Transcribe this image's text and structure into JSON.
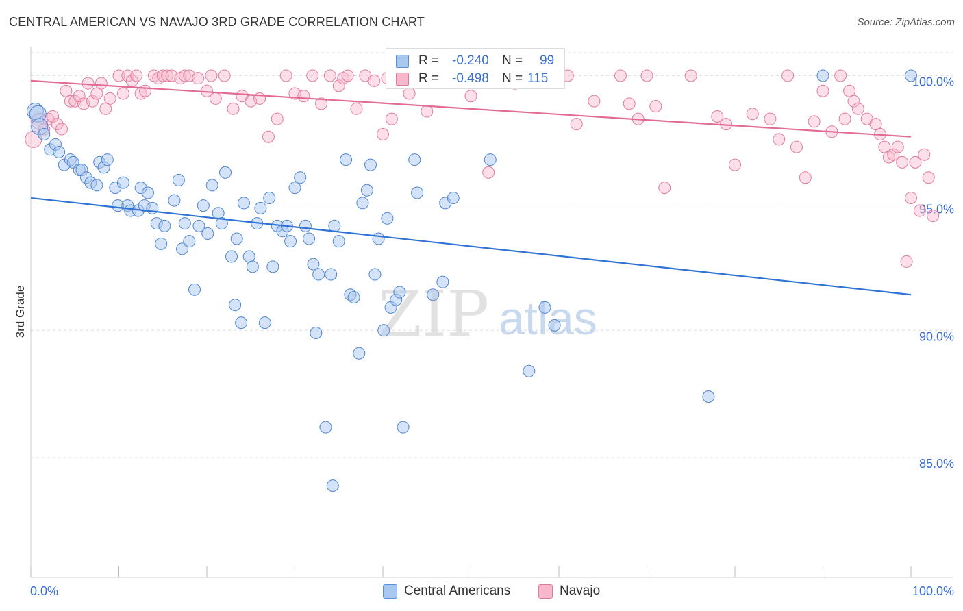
{
  "title": "CENTRAL AMERICAN VS NAVAJO 3RD GRADE CORRELATION CHART",
  "source": "Source: ZipAtlas.com",
  "watermark": {
    "zip": "ZIP",
    "atlas": "atlas"
  },
  "legend": {
    "rows": [
      {
        "r_label": "R =",
        "r_value": "-0.240",
        "n_label": "N =",
        "n_value": "99",
        "color": "#a9c8f0",
        "border": "#5b8fd6"
      },
      {
        "r_label": "R =",
        "r_value": "-0.498",
        "n_label": "N =",
        "n_value": "115",
        "color": "#f8b8cb",
        "border": "#e27a9c"
      }
    ]
  },
  "bottom_legend": [
    {
      "label": "Central Americans",
      "color": "#a9c8f0",
      "border": "#5b8fd6"
    },
    {
      "label": "Navajo",
      "color": "#f8b8cb",
      "border": "#e27a9c"
    }
  ],
  "chart_data": {
    "type": "scatter",
    "title": "CENTRAL AMERICAN VS NAVAJO 3RD GRADE CORRELATION CHART",
    "xlabel": "",
    "ylabel": "3rd Grade",
    "xlim": [
      0,
      100
    ],
    "ylim": [
      80.3,
      100.9
    ],
    "x_tick_labels": [
      "0.0%",
      "100.0%"
    ],
    "y_ticks": [
      85,
      90,
      95,
      100
    ],
    "y_tick_labels": [
      "85.0%",
      "90.0%",
      "95.0%",
      "100.0%"
    ],
    "grid": true,
    "legend_position": "top-center",
    "colors": {
      "central": "#2f73d6",
      "navajo": "#e26a93",
      "axis_text": "#3a6fd0"
    },
    "series": [
      {
        "name": "Central Americans",
        "r": -0.24,
        "n": 99,
        "trend": [
          [
            0,
            95.2
          ],
          [
            100,
            91.4
          ]
        ],
        "points": [
          [
            0.5,
            98.6
          ],
          [
            0.8,
            98.5
          ],
          [
            1.0,
            98.0
          ],
          [
            1.5,
            97.7
          ],
          [
            2.2,
            97.1
          ],
          [
            2.8,
            97.3
          ],
          [
            3.2,
            97.0
          ],
          [
            3.8,
            96.5
          ],
          [
            4.5,
            96.7
          ],
          [
            4.8,
            96.6
          ],
          [
            5.5,
            96.3
          ],
          [
            5.8,
            96.3
          ],
          [
            6.3,
            96.0
          ],
          [
            6.8,
            95.8
          ],
          [
            7.5,
            95.7
          ],
          [
            7.8,
            96.6
          ],
          [
            8.3,
            96.4
          ],
          [
            8.7,
            96.7
          ],
          [
            9.6,
            95.6
          ],
          [
            9.9,
            94.9
          ],
          [
            10.5,
            95.8
          ],
          [
            11.0,
            94.9
          ],
          [
            11.3,
            94.7
          ],
          [
            12.2,
            94.7
          ],
          [
            12.5,
            95.6
          ],
          [
            12.9,
            94.9
          ],
          [
            13.3,
            95.4
          ],
          [
            13.8,
            94.8
          ],
          [
            14.3,
            94.2
          ],
          [
            14.8,
            93.4
          ],
          [
            15.2,
            94.1
          ],
          [
            16.3,
            95.1
          ],
          [
            16.8,
            95.9
          ],
          [
            17.2,
            93.2
          ],
          [
            17.5,
            94.2
          ],
          [
            18.0,
            93.5
          ],
          [
            18.6,
            91.6
          ],
          [
            19.1,
            94.1
          ],
          [
            19.6,
            94.9
          ],
          [
            20.1,
            93.8
          ],
          [
            20.6,
            95.7
          ],
          [
            21.3,
            94.6
          ],
          [
            21.7,
            94.2
          ],
          [
            22.1,
            96.2
          ],
          [
            22.8,
            92.9
          ],
          [
            23.2,
            91.0
          ],
          [
            23.4,
            93.6
          ],
          [
            23.9,
            90.3
          ],
          [
            24.2,
            95.0
          ],
          [
            24.8,
            92.9
          ],
          [
            25.2,
            92.5
          ],
          [
            25.7,
            94.2
          ],
          [
            26.1,
            94.8
          ],
          [
            26.6,
            90.3
          ],
          [
            27.1,
            95.2
          ],
          [
            27.5,
            92.5
          ],
          [
            28.0,
            94.1
          ],
          [
            28.6,
            93.9
          ],
          [
            29.1,
            94.1
          ],
          [
            29.5,
            93.5
          ],
          [
            30.0,
            95.6
          ],
          [
            30.6,
            96.0
          ],
          [
            31.2,
            94.1
          ],
          [
            31.6,
            93.6
          ],
          [
            32.1,
            92.6
          ],
          [
            32.7,
            92.2
          ],
          [
            32.4,
            89.9
          ],
          [
            33.5,
            86.2
          ],
          [
            34.1,
            92.2
          ],
          [
            34.5,
            94.1
          ],
          [
            35.0,
            93.5
          ],
          [
            35.8,
            96.7
          ],
          [
            36.3,
            91.4
          ],
          [
            36.7,
            91.3
          ],
          [
            37.3,
            89.1
          ],
          [
            37.7,
            95.0
          ],
          [
            38.2,
            95.5
          ],
          [
            38.6,
            96.5
          ],
          [
            39.1,
            92.2
          ],
          [
            39.5,
            93.6
          ],
          [
            40.1,
            90.0
          ],
          [
            40.5,
            94.4
          ],
          [
            40.9,
            90.9
          ],
          [
            41.5,
            91.2
          ],
          [
            41.9,
            91.5
          ],
          [
            42.3,
            86.2
          ],
          [
            42.6,
            100.0
          ],
          [
            43.6,
            96.7
          ],
          [
            43.9,
            95.4
          ],
          [
            45.7,
            91.4
          ],
          [
            46.8,
            91.9
          ],
          [
            47.1,
            95.0
          ],
          [
            48.0,
            95.2
          ],
          [
            52.2,
            96.7
          ],
          [
            56.6,
            88.4
          ],
          [
            57.6,
            100.0
          ],
          [
            58.4,
            90.9
          ],
          [
            59.5,
            90.2
          ],
          [
            77.0,
            87.4
          ],
          [
            90.0,
            100.0
          ],
          [
            100.0,
            100.0
          ],
          [
            34.3,
            83.9
          ]
        ]
      },
      {
        "name": "Navajo",
        "r": -0.498,
        "n": 115,
        "trend": [
          [
            0,
            99.8
          ],
          [
            100,
            97.6
          ]
        ],
        "points": [
          [
            0.3,
            97.5
          ],
          [
            1.0,
            98.2
          ],
          [
            1.5,
            97.9
          ],
          [
            2.0,
            98.3
          ],
          [
            2.5,
            98.4
          ],
          [
            3.0,
            98.1
          ],
          [
            3.5,
            97.9
          ],
          [
            4.0,
            99.4
          ],
          [
            4.5,
            99.0
          ],
          [
            5.0,
            99.0
          ],
          [
            5.5,
            99.2
          ],
          [
            6.0,
            98.9
          ],
          [
            6.5,
            99.7
          ],
          [
            7.0,
            99.0
          ],
          [
            7.5,
            99.3
          ],
          [
            8.0,
            99.7
          ],
          [
            8.5,
            98.7
          ],
          [
            9.0,
            99.1
          ],
          [
            10.0,
            100.0
          ],
          [
            10.5,
            99.3
          ],
          [
            11.0,
            100.0
          ],
          [
            11.5,
            99.8
          ],
          [
            12.0,
            100.0
          ],
          [
            12.5,
            99.3
          ],
          [
            13.0,
            99.4
          ],
          [
            14.0,
            100.0
          ],
          [
            14.5,
            99.9
          ],
          [
            15.0,
            100.0
          ],
          [
            15.5,
            100.0
          ],
          [
            16.0,
            100.0
          ],
          [
            17.0,
            99.9
          ],
          [
            17.5,
            100.0
          ],
          [
            18.0,
            100.0
          ],
          [
            19.0,
            99.9
          ],
          [
            20.0,
            99.4
          ],
          [
            20.5,
            100.0
          ],
          [
            21.0,
            99.1
          ],
          [
            22.0,
            100.0
          ],
          [
            23.0,
            98.7
          ],
          [
            24.0,
            99.2
          ],
          [
            25.0,
            99.0
          ],
          [
            26.0,
            99.1
          ],
          [
            27.0,
            97.6
          ],
          [
            28.0,
            98.3
          ],
          [
            29.0,
            100.0
          ],
          [
            30.0,
            99.3
          ],
          [
            31.0,
            99.2
          ],
          [
            32.0,
            100.0
          ],
          [
            33.0,
            98.9
          ],
          [
            34.0,
            100.0
          ],
          [
            35.0,
            99.6
          ],
          [
            35.5,
            99.9
          ],
          [
            36.0,
            100.0
          ],
          [
            37.0,
            98.7
          ],
          [
            38.0,
            100.0
          ],
          [
            39.0,
            99.8
          ],
          [
            40.0,
            97.7
          ],
          [
            40.5,
            99.9
          ],
          [
            41.0,
            98.3
          ],
          [
            42.0,
            100.0
          ],
          [
            43.0,
            99.3
          ],
          [
            44.0,
            100.0
          ],
          [
            45.0,
            98.6
          ],
          [
            46.0,
            100.0
          ],
          [
            47.0,
            99.8
          ],
          [
            48.0,
            100.0
          ],
          [
            50.0,
            99.2
          ],
          [
            52.0,
            96.2
          ],
          [
            54.0,
            100.0
          ],
          [
            55.0,
            99.7
          ],
          [
            56.0,
            100.0
          ],
          [
            58.0,
            100.0
          ],
          [
            59.0,
            100.0
          ],
          [
            60.0,
            100.0
          ],
          [
            61.0,
            100.0
          ],
          [
            62.0,
            98.1
          ],
          [
            64.0,
            99.0
          ],
          [
            67.0,
            100.0
          ],
          [
            68.0,
            98.9
          ],
          [
            69.0,
            98.3
          ],
          [
            70.0,
            100.0
          ],
          [
            71.0,
            98.8
          ],
          [
            72.0,
            95.6
          ],
          [
            75.0,
            100.0
          ],
          [
            78.0,
            98.4
          ],
          [
            79.0,
            98.1
          ],
          [
            80.0,
            96.5
          ],
          [
            82.0,
            98.5
          ],
          [
            84.0,
            98.3
          ],
          [
            85.0,
            97.5
          ],
          [
            86.0,
            100.0
          ],
          [
            87.0,
            97.2
          ],
          [
            88.0,
            96.0
          ],
          [
            89.0,
            98.2
          ],
          [
            90.0,
            99.4
          ],
          [
            91.0,
            97.8
          ],
          [
            92.0,
            100.0
          ],
          [
            92.5,
            98.3
          ],
          [
            93.0,
            99.4
          ],
          [
            93.5,
            99.0
          ],
          [
            94.0,
            98.7
          ],
          [
            95.0,
            98.3
          ],
          [
            96.0,
            98.1
          ],
          [
            96.5,
            97.7
          ],
          [
            97.0,
            97.2
          ],
          [
            97.5,
            96.8
          ],
          [
            98.0,
            96.9
          ],
          [
            98.5,
            97.2
          ],
          [
            99.0,
            96.6
          ],
          [
            99.5,
            92.7
          ],
          [
            100.0,
            95.2
          ],
          [
            100.5,
            96.6
          ],
          [
            101.0,
            94.7
          ],
          [
            101.5,
            96.9
          ],
          [
            102.0,
            96.0
          ],
          [
            102.5,
            94.5
          ]
        ]
      }
    ]
  }
}
